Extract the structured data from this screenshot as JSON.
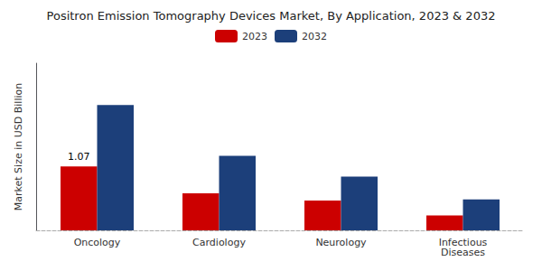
{
  "chart_data": {
    "type": "bar",
    "title": "Positron Emission Tomography Devices Market, By Application, 2023 & 2032",
    "ylabel": "Market Size in USD Billion",
    "categories": [
      "Oncology",
      "Cardiology",
      "Neurology",
      "Infectious\nDiseases"
    ],
    "series": [
      {
        "name": "2023",
        "color": "#cc0000",
        "values": [
          1.07,
          0.62,
          0.5,
          0.25
        ]
      },
      {
        "name": "2032",
        "color": "#1c3f7a",
        "values": [
          2.1,
          1.25,
          0.9,
          0.52
        ]
      }
    ],
    "annotations": [
      {
        "text": "1.07",
        "x": "Oncology",
        "y": 1.07,
        "series": "2023"
      }
    ],
    "ylim": [
      0,
      2.8
    ],
    "tick_labels": "x",
    "grid": false,
    "legend": "top"
  }
}
